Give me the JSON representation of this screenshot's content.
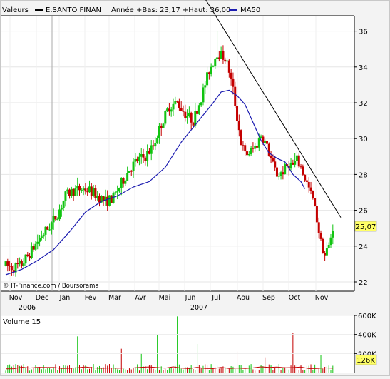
{
  "header": {
    "valeurs_label": "Valeurs",
    "series_label": "E.SANTO FINAN",
    "range_text": "Année +Bas: 23,17 +Haut: 36,00",
    "ma_label": "MA50"
  },
  "credit": "© IT-Finance.com / Boursorama",
  "colors": {
    "background": "#f3f3f3",
    "plot_bg": "#ffffff",
    "up": "#11c411",
    "down": "#c40000",
    "ma": "#1b1bb0",
    "trend": "#000000",
    "price_badge": "#ffff66",
    "volume_ma": "#c40000"
  },
  "chart_data": [
    {
      "type": "candlestick",
      "title": "E.SANTO FINAN",
      "ylim": [
        22,
        37
      ],
      "yticks": [
        22,
        24,
        26,
        28,
        30,
        32,
        34,
        36
      ],
      "months": [
        "Nov",
        "Dec",
        "Jan",
        "Fev",
        "Mar",
        "Avr",
        "Mai",
        "Jun",
        "Jul",
        "Aou",
        "Sep",
        "Oct",
        "Nov"
      ],
      "years": [
        {
          "label": "2006",
          "at_month": 0
        },
        {
          "label": "2007",
          "at_month": 7
        }
      ],
      "last_price": "25,07",
      "low": 23.17,
      "high": 36.0,
      "price_keypoints": [
        [
          0,
          22.9
        ],
        [
          2,
          22.8
        ],
        [
          4,
          23.0
        ],
        [
          6,
          23.6
        ],
        [
          9,
          24.6
        ],
        [
          11,
          25.1
        ],
        [
          13,
          25.8
        ],
        [
          15,
          26.8
        ],
        [
          17,
          27.1
        ],
        [
          19,
          27.2
        ],
        [
          21,
          27.1
        ],
        [
          23,
          26.8
        ],
        [
          25,
          26.5
        ],
        [
          27,
          26.7
        ],
        [
          29,
          27.5
        ],
        [
          31,
          28.3
        ],
        [
          33,
          28.8
        ],
        [
          35,
          29.0
        ],
        [
          37,
          29.6
        ],
        [
          39,
          30.8
        ],
        [
          41,
          31.8
        ],
        [
          43,
          32.0
        ],
        [
          45,
          31.4
        ],
        [
          47,
          31.0
        ],
        [
          49,
          32.3
        ],
        [
          51,
          33.8
        ],
        [
          53,
          34.8
        ],
        [
          55,
          34.5
        ],
        [
          56,
          33.8
        ],
        [
          57,
          32.7
        ],
        [
          58,
          31.2
        ],
        [
          59,
          29.8
        ],
        [
          60,
          29.1
        ],
        [
          61,
          29.2
        ],
        [
          62,
          29.4
        ],
        [
          63,
          29.7
        ],
        [
          64,
          30.2
        ],
        [
          65,
          29.8
        ],
        [
          66,
          29.2
        ],
        [
          67,
          28.5
        ],
        [
          68,
          28.0
        ],
        [
          69,
          28.1
        ],
        [
          70,
          28.3
        ],
        [
          71,
          28.6
        ],
        [
          72,
          28.5
        ],
        [
          73,
          28.8
        ],
        [
          74,
          28.4
        ],
        [
          75,
          27.8
        ],
        [
          76,
          27.2
        ],
        [
          77,
          26.6
        ],
        [
          78,
          25.5
        ],
        [
          79,
          24.2
        ],
        [
          80,
          23.5
        ],
        [
          81,
          24.0
        ],
        [
          82,
          25.07
        ]
      ],
      "ma50": [
        [
          0,
          22.4
        ],
        [
          4,
          22.7
        ],
        [
          8,
          23.2
        ],
        [
          12,
          23.8
        ],
        [
          16,
          24.8
        ],
        [
          20,
          25.9
        ],
        [
          24,
          26.5
        ],
        [
          28,
          26.8
        ],
        [
          32,
          27.3
        ],
        [
          36,
          27.6
        ],
        [
          40,
          28.4
        ],
        [
          44,
          29.8
        ],
        [
          48,
          30.9
        ],
        [
          52,
          32.0
        ],
        [
          54,
          32.6
        ],
        [
          56,
          32.7
        ],
        [
          58,
          32.4
        ],
        [
          60,
          31.9
        ],
        [
          62,
          30.9
        ],
        [
          64,
          29.9
        ],
        [
          66,
          29.2
        ],
        [
          68,
          28.9
        ],
        [
          70,
          28.7
        ],
        [
          72,
          28.0
        ],
        [
          74,
          27.6
        ],
        [
          75,
          27.2
        ]
      ],
      "trendline": [
        [
          50,
          37.8
        ],
        [
          84,
          25.6
        ]
      ],
      "x_domain": [
        0,
        84
      ]
    },
    {
      "type": "bar",
      "title": "Volume 15",
      "ylim": [
        0,
        600000
      ],
      "yticks": [
        {
          "v": 600000,
          "label": "600K"
        },
        {
          "v": 400000,
          "label": "400K"
        },
        {
          "v": 200000,
          "label": "200K"
        }
      ],
      "last_volume": "126K",
      "spikes": [
        {
          "day": 18,
          "v": 380000,
          "up": true
        },
        {
          "day": 29,
          "v": 250000,
          "up": false
        },
        {
          "day": 34,
          "v": 210000,
          "up": true
        },
        {
          "day": 38,
          "v": 390000,
          "up": true
        },
        {
          "day": 43,
          "v": 590000,
          "up": true
        },
        {
          "day": 48,
          "v": 300000,
          "up": true
        },
        {
          "day": 58,
          "v": 220000,
          "up": false
        },
        {
          "day": 65,
          "v": 160000,
          "up": false
        },
        {
          "day": 72,
          "v": 420000,
          "up": false
        },
        {
          "day": 79,
          "v": 180000,
          "up": true
        }
      ]
    }
  ]
}
